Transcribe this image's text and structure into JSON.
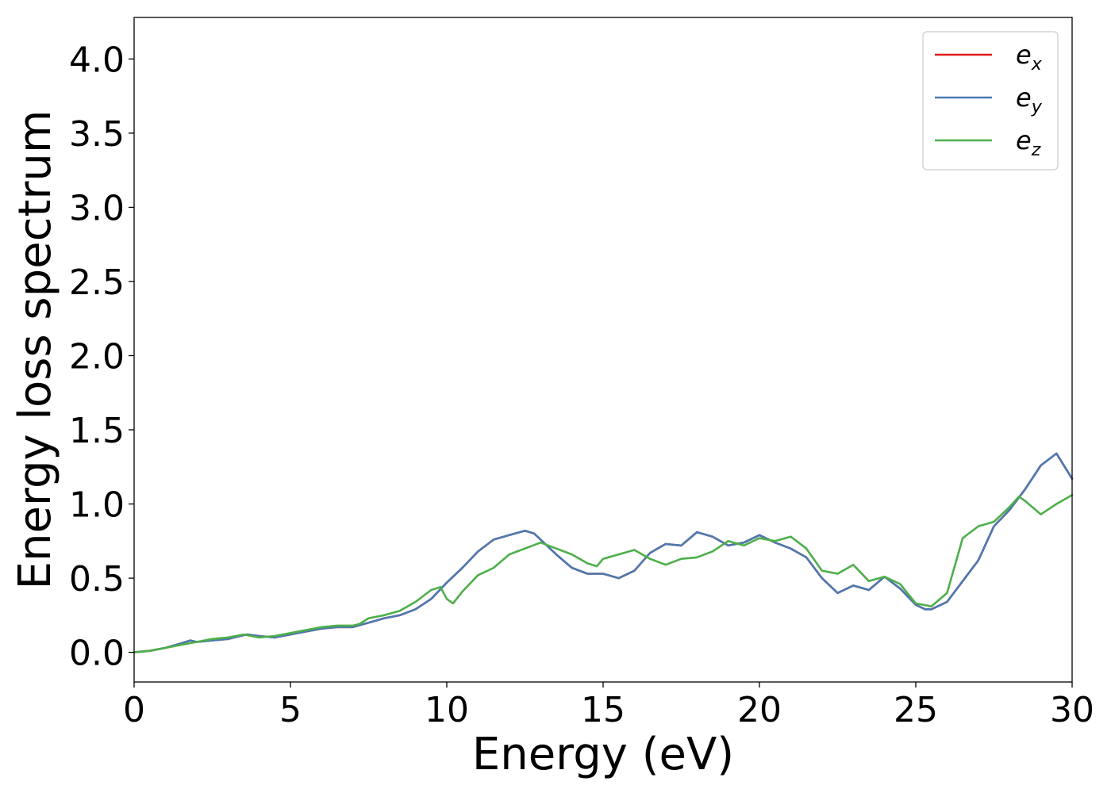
{
  "chart_data": {
    "type": "line",
    "title": "",
    "xlabel": "Energy (eV)",
    "ylabel": "Energy loss spectrum",
    "xlim": [
      0,
      30
    ],
    "ylim": [
      -0.2,
      4.28
    ],
    "xticks": [
      0,
      5,
      10,
      15,
      20,
      25,
      30
    ],
    "xtick_labels": [
      "0",
      "5",
      "10",
      "15",
      "20",
      "25",
      "30"
    ],
    "yticks": [
      0.0,
      0.5,
      1.0,
      1.5,
      2.0,
      2.5,
      3.0,
      3.5,
      4.0
    ],
    "ytick_labels": [
      "0.0",
      "0.5",
      "1.0",
      "1.5",
      "2.0",
      "2.5",
      "3.0",
      "3.5",
      "4.0"
    ],
    "grid": false,
    "legend_position": "top-right",
    "series": [
      {
        "name": "e",
        "subscript": "x",
        "color": "#e41a1c",
        "x": [
          0,
          0.5,
          1,
          1.5,
          1.8,
          2,
          2.5,
          3,
          3.2,
          3.6,
          4,
          4.5,
          5,
          5.5,
          6,
          6.5,
          7,
          7.5,
          8,
          8.5,
          9,
          9.5,
          10,
          10.5,
          11,
          11.5,
          12,
          12.5,
          12.8,
          13,
          13.5,
          14,
          14.5,
          15,
          15.5,
          16,
          16.5,
          17,
          17.5,
          18,
          18.5,
          19,
          19.5,
          20,
          20.5,
          21,
          21.5,
          22,
          22.5,
          23,
          23.5,
          24,
          24.5,
          25,
          25.3,
          25.5,
          26,
          26.5,
          27,
          27.5,
          28,
          28.5,
          29,
          29.5,
          30
        ],
        "y": [
          0.0,
          0.01,
          0.03,
          0.06,
          0.08,
          0.07,
          0.08,
          0.09,
          0.1,
          0.12,
          0.11,
          0.1,
          0.12,
          0.14,
          0.16,
          0.17,
          0.17,
          0.2,
          0.23,
          0.25,
          0.29,
          0.36,
          0.47,
          0.57,
          0.68,
          0.76,
          0.79,
          0.82,
          0.8,
          0.76,
          0.66,
          0.57,
          0.53,
          0.53,
          0.5,
          0.55,
          0.67,
          0.73,
          0.72,
          0.81,
          0.78,
          0.72,
          0.74,
          0.79,
          0.74,
          0.7,
          0.64,
          0.5,
          0.4,
          0.45,
          0.42,
          0.51,
          0.43,
          0.32,
          0.29,
          0.29,
          0.34,
          0.48,
          0.62,
          0.85,
          0.96,
          1.1,
          1.26,
          1.34,
          1.17
        ]
      },
      {
        "name": "e",
        "subscript": "y",
        "color": "#4a7ab0",
        "x": [
          0,
          0.5,
          1,
          1.5,
          1.8,
          2,
          2.5,
          3,
          3.2,
          3.6,
          4,
          4.5,
          5,
          5.5,
          6,
          6.5,
          7,
          7.5,
          8,
          8.5,
          9,
          9.5,
          10,
          10.5,
          11,
          11.5,
          12,
          12.5,
          12.8,
          13,
          13.5,
          14,
          14.5,
          15,
          15.5,
          16,
          16.5,
          17,
          17.5,
          18,
          18.5,
          19,
          19.5,
          20,
          20.5,
          21,
          21.5,
          22,
          22.5,
          23,
          23.5,
          24,
          24.5,
          25,
          25.3,
          25.5,
          26,
          26.5,
          27,
          27.5,
          28,
          28.5,
          29,
          29.5,
          30
        ],
        "y": [
          0.0,
          0.01,
          0.03,
          0.06,
          0.08,
          0.07,
          0.08,
          0.09,
          0.1,
          0.12,
          0.11,
          0.1,
          0.12,
          0.14,
          0.16,
          0.17,
          0.17,
          0.2,
          0.23,
          0.25,
          0.29,
          0.36,
          0.47,
          0.57,
          0.68,
          0.76,
          0.79,
          0.82,
          0.8,
          0.76,
          0.66,
          0.57,
          0.53,
          0.53,
          0.5,
          0.55,
          0.67,
          0.73,
          0.72,
          0.81,
          0.78,
          0.72,
          0.74,
          0.79,
          0.74,
          0.7,
          0.64,
          0.5,
          0.4,
          0.45,
          0.42,
          0.51,
          0.43,
          0.32,
          0.29,
          0.29,
          0.34,
          0.48,
          0.62,
          0.85,
          0.96,
          1.1,
          1.26,
          1.34,
          1.17
        ]
      },
      {
        "name": "e",
        "subscript": "z",
        "color": "#4daf4a",
        "x": [
          0,
          0.5,
          1,
          1.5,
          2,
          2.5,
          3,
          3.5,
          4,
          4.5,
          5,
          5.5,
          6,
          6.5,
          7,
          7.2,
          7.5,
          8,
          8.5,
          9,
          9.5,
          9.8,
          10,
          10.2,
          10.5,
          11,
          11.5,
          12,
          12.5,
          13,
          13.5,
          14,
          14.5,
          14.8,
          15,
          15.5,
          16,
          16.5,
          17,
          17.5,
          18,
          18.5,
          19,
          19.5,
          20,
          20.5,
          21,
          21.5,
          22,
          22.5,
          23,
          23.5,
          24,
          24.5,
          25,
          25.5,
          26,
          26.5,
          27,
          27.5,
          28,
          28.3,
          28.5,
          29,
          29.5,
          30
        ],
        "y": [
          0.0,
          0.01,
          0.03,
          0.05,
          0.07,
          0.09,
          0.1,
          0.12,
          0.1,
          0.11,
          0.13,
          0.15,
          0.17,
          0.18,
          0.18,
          0.19,
          0.23,
          0.25,
          0.28,
          0.34,
          0.42,
          0.44,
          0.36,
          0.33,
          0.41,
          0.52,
          0.57,
          0.66,
          0.7,
          0.74,
          0.7,
          0.66,
          0.6,
          0.58,
          0.63,
          0.66,
          0.69,
          0.63,
          0.59,
          0.63,
          0.64,
          0.68,
          0.75,
          0.72,
          0.77,
          0.75,
          0.78,
          0.7,
          0.55,
          0.53,
          0.59,
          0.48,
          0.51,
          0.46,
          0.33,
          0.31,
          0.4,
          0.77,
          0.85,
          0.88,
          0.98,
          1.05,
          1.02,
          0.93,
          1.0,
          1.06
        ]
      }
    ]
  }
}
